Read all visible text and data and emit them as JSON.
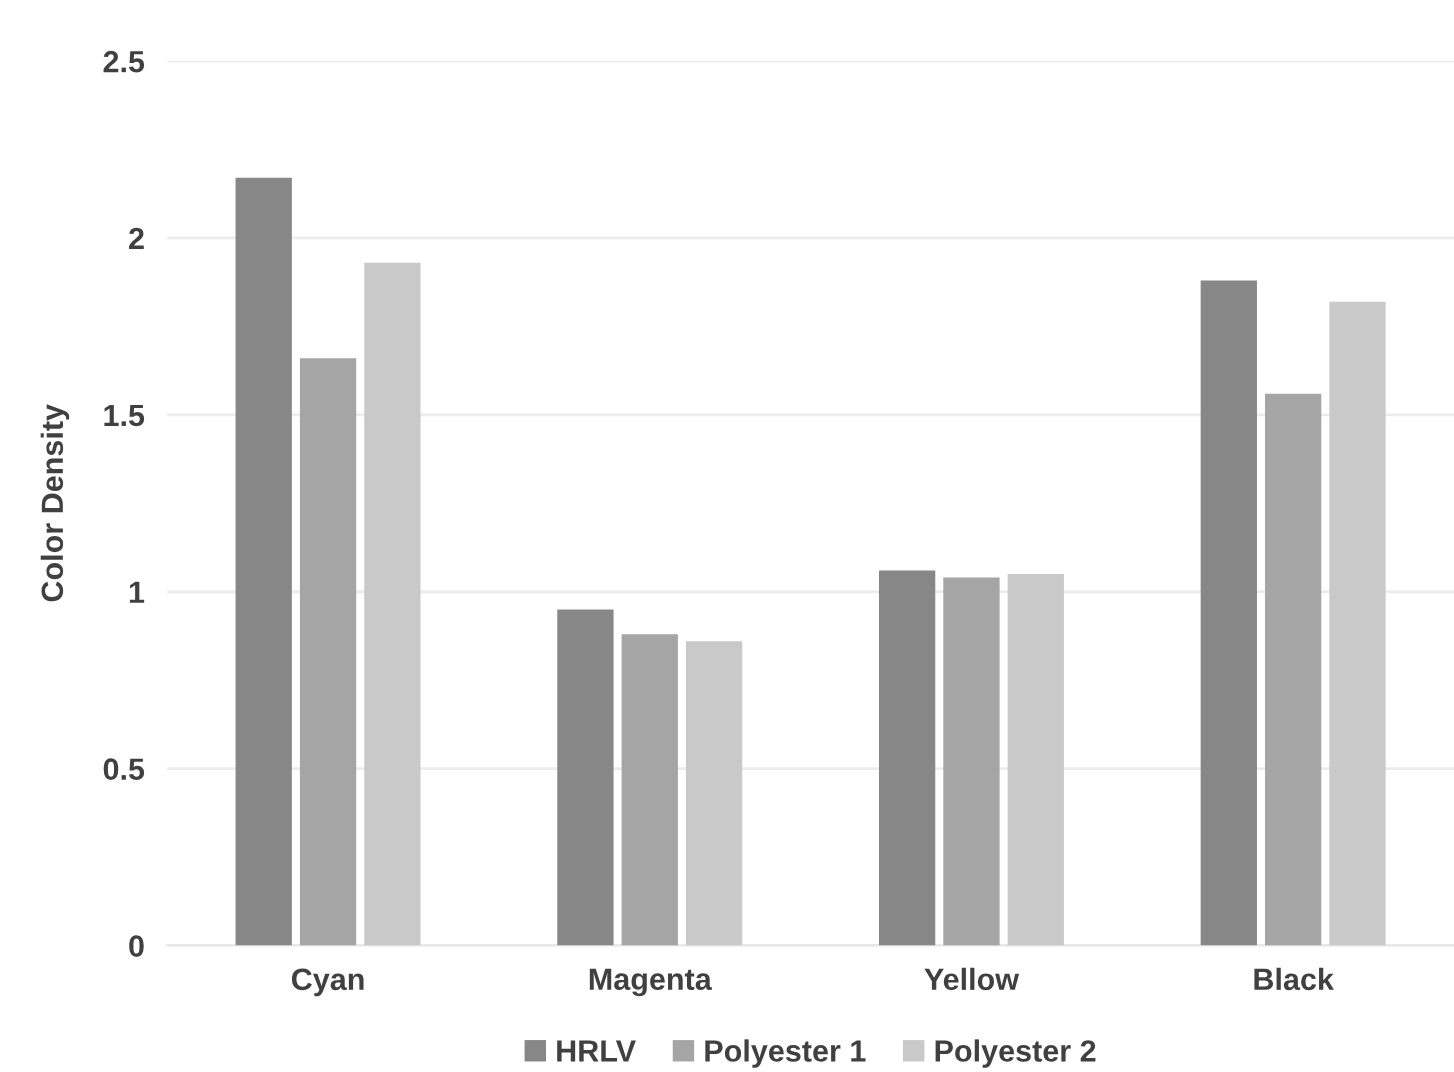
{
  "chart_data": {
    "type": "bar",
    "ylabel": "Color Density",
    "categories": [
      "Cyan",
      "Magenta",
      "Yellow",
      "Black"
    ],
    "series": [
      {
        "name": "HRLV",
        "color": "#878787",
        "values": [
          2.17,
          0.95,
          1.06,
          1.88
        ]
      },
      {
        "name": "Polyester 1",
        "color": "#a5a5a5",
        "values": [
          1.66,
          0.88,
          1.04,
          1.56
        ]
      },
      {
        "name": "Polyester 2",
        "color": "#c9c9c9",
        "values": [
          1.93,
          0.86,
          1.05,
          1.82
        ]
      }
    ],
    "ylim": [
      0,
      2.5
    ],
    "yticks": [
      0,
      0.5,
      1,
      1.5,
      2,
      2.5
    ],
    "grid": "y",
    "legend": "bottom"
  }
}
